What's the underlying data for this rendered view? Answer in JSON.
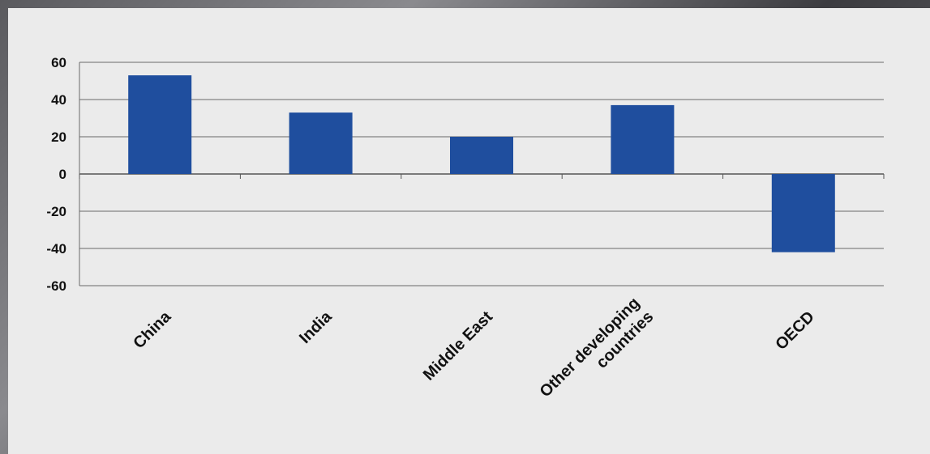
{
  "chart_data": {
    "type": "bar",
    "categories": [
      [
        "China"
      ],
      [
        "India"
      ],
      [
        "Middle East"
      ],
      [
        "Other developing",
        "countries"
      ],
      [
        "OECD"
      ]
    ],
    "values": [
      53,
      33,
      20,
      37,
      -42
    ],
    "ylim": [
      -60,
      60
    ],
    "yticks": [
      60,
      40,
      20,
      0,
      -20,
      -40,
      -60
    ],
    "grid": true,
    "bar_color": "#1f4e9e",
    "title": "",
    "xlabel": "",
    "ylabel": ""
  }
}
